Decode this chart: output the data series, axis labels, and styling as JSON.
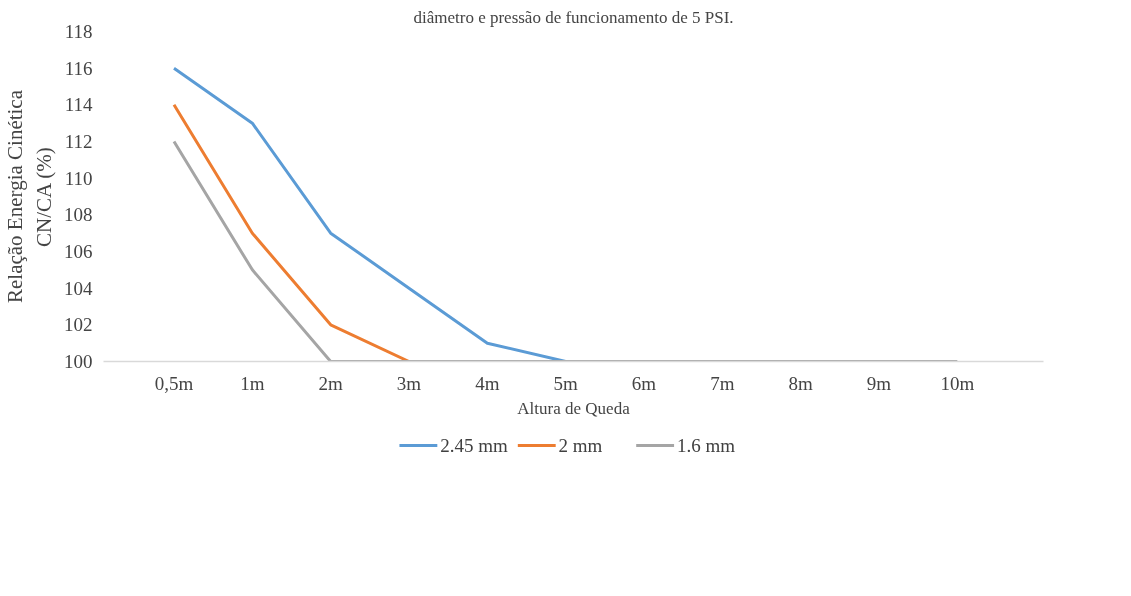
{
  "chart_data": {
    "type": "line",
    "annotations": [
      "diâmetro e pressão de funcionamento de 5 PSI."
    ],
    "xlabel": "Altura de Queda",
    "ylabel": "Relação Energia Cinética\nCN/CA (%)",
    "categories": [
      "0,5m",
      "1m",
      "2m",
      "3m",
      "4m",
      "5m",
      "6m",
      "7m",
      "8m",
      "9m",
      "10m"
    ],
    "series": [
      {
        "name": "2.45 mm",
        "color": "#5b9bd5",
        "values": [
          116,
          113,
          107,
          104,
          101,
          100,
          null,
          null,
          null,
          null,
          null
        ]
      },
      {
        "name": "2 mm",
        "color": "#ed7d31",
        "values": [
          114,
          107,
          102,
          100,
          null,
          null,
          null,
          null,
          null,
          null,
          null
        ]
      },
      {
        "name": "1.6 mm",
        "color": "#a5a5a5",
        "values": [
          112,
          105,
          100,
          100,
          100,
          100,
          100,
          100,
          100,
          100,
          100
        ]
      }
    ],
    "ylim": [
      100,
      118
    ],
    "yticks": [
      100,
      102,
      104,
      106,
      108,
      110,
      112,
      114,
      116,
      118
    ],
    "grid": false,
    "legend": "bottom",
    "marker": "none",
    "line_style": "solid"
  }
}
